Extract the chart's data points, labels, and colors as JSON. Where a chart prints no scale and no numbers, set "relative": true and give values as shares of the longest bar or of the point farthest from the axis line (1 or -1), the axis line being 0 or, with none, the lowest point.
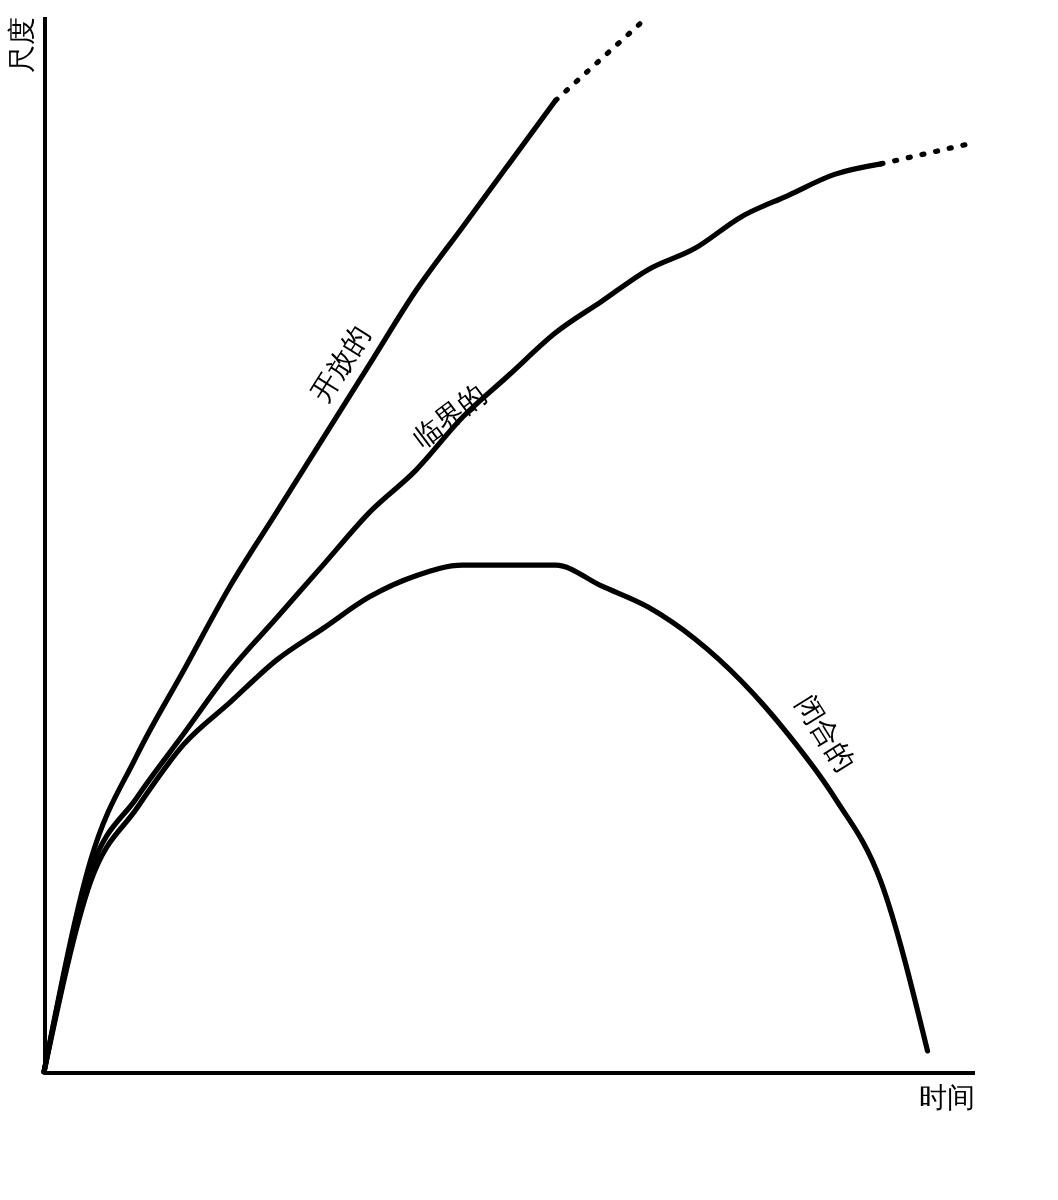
{
  "chart_data": {
    "type": "line",
    "xlabel": "时间",
    "ylabel": "尺度",
    "relative": true,
    "legend": false,
    "grid": false,
    "marker": "none",
    "tick_labels": false,
    "categories": [
      null,
      null,
      null,
      null,
      null,
      null,
      null,
      null,
      null,
      null,
      null,
      null,
      null,
      null,
      null,
      null,
      null,
      null,
      null,
      null,
      null
    ],
    "series": [
      {
        "name": "开放的",
        "color": "#000000",
        "line_style": "solid",
        "values": [
          0,
          0.2,
          0.3,
          0.38,
          0.46,
          0.53,
          0.6,
          0.67,
          0.74,
          0.8,
          0.86,
          0.92,
          null,
          null,
          null,
          null,
          null,
          null,
          null,
          null,
          null
        ]
      },
      {
        "color": "#000000",
        "line_style": "dotted",
        "values": [
          null,
          null,
          null,
          null,
          null,
          null,
          null,
          null,
          null,
          null,
          null,
          0.92,
          0.96,
          1,
          null,
          null,
          null,
          null,
          null,
          null,
          null
        ]
      },
      {
        "name": "临界的",
        "color": "#000000",
        "line_style": "solid",
        "values": [
          0,
          0.19,
          0.26,
          0.32,
          0.38,
          0.43,
          0.48,
          0.53,
          0.57,
          0.62,
          0.66,
          0.7,
          0.73,
          0.76,
          0.78,
          0.81,
          0.83,
          0.85,
          0.86,
          null,
          null
        ]
      },
      {
        "color": "#000000",
        "line_style": "dotted",
        "values": [
          null,
          null,
          null,
          null,
          null,
          null,
          null,
          null,
          null,
          null,
          null,
          null,
          null,
          null,
          null,
          null,
          null,
          null,
          0.86,
          0.87,
          0.88
        ]
      },
      {
        "name": "闭合的",
        "color": "#000000",
        "line_style": "solid",
        "values": [
          0,
          0.18,
          0.25,
          0.31,
          0.35,
          0.39,
          0.42,
          0.45,
          0.47,
          0.48,
          0.48,
          0.48,
          0.46,
          0.44,
          0.41,
          0.37,
          0.32,
          0.26,
          0.18,
          0.02,
          null
        ]
      }
    ]
  }
}
